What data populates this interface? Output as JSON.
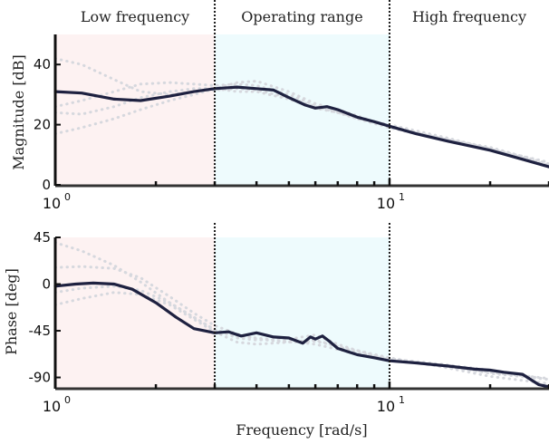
{
  "chart_data": [
    {
      "type": "line",
      "x_scale": "log",
      "xlim": [
        1,
        30
      ],
      "ylim": [
        0,
        50
      ],
      "ylabel": "Magnitude [dB]",
      "yticks": [
        0,
        20,
        40
      ],
      "xticks": [
        1,
        10
      ],
      "xtick_labels": [
        {
          "base": "10",
          "exp": "0"
        },
        {
          "base": "10",
          "exp": "1"
        }
      ],
      "regions": [
        {
          "label": "Low frequency",
          "from": 1,
          "to": 3,
          "color": "#fdf2f2"
        },
        {
          "label": "Operating range",
          "from": 3,
          "to": 10,
          "color": "#eefbfd"
        },
        {
          "label": "High frequency",
          "from": 10,
          "to": 30,
          "color": "#ffffff"
        }
      ],
      "boundaries": [
        3,
        10
      ],
      "series": [
        {
          "role": "nominal",
          "color": "#1e2140",
          "x": [
            1,
            1.2,
            1.5,
            1.8,
            2.2,
            2.6,
            3.0,
            3.5,
            4.0,
            4.5,
            5.0,
            5.6,
            6.0,
            6.5,
            7.0,
            8.0,
            9.0,
            10,
            12,
            15,
            20,
            25,
            30
          ],
          "y": [
            31,
            30.5,
            28.5,
            28,
            29.5,
            31,
            32,
            32.5,
            32,
            31.5,
            29,
            26.5,
            25.5,
            26,
            25,
            22.5,
            21,
            19.5,
            17,
            14.5,
            11.5,
            8.5,
            6
          ]
        },
        {
          "role": "perturbed",
          "color": "#d6d8de",
          "x": [
            1,
            1.2,
            1.5,
            1.8,
            2.2,
            2.6,
            3.0,
            3.5,
            4.0,
            5.0,
            6.0,
            7.0,
            8.0,
            10,
            15,
            20,
            30
          ],
          "y": [
            42,
            40,
            35,
            31,
            30,
            31,
            31.5,
            32,
            31.5,
            29,
            26,
            24,
            22.5,
            19.5,
            15,
            12,
            6.5
          ]
        },
        {
          "role": "perturbed",
          "color": "#d6d8de",
          "x": [
            1,
            1.2,
            1.5,
            1.8,
            2.2,
            2.6,
            3.0,
            3.5,
            4.0,
            5.0,
            6.0,
            7.0,
            8.0,
            10,
            15,
            20,
            30
          ],
          "y": [
            17,
            19,
            22,
            25,
            28,
            30,
            32,
            34,
            34.5,
            31,
            27,
            25,
            23,
            19,
            14.5,
            11.5,
            6
          ]
        },
        {
          "role": "perturbed",
          "color": "#d6d8de",
          "x": [
            1,
            1.2,
            1.5,
            1.8,
            2.2,
            2.6,
            3.0,
            3.5,
            4.0,
            5.0,
            6.0,
            7.0,
            8.0,
            10,
            15,
            20,
            30
          ],
          "y": [
            26,
            28,
            31,
            33.5,
            34,
            33.5,
            33,
            33.5,
            33,
            30,
            26.5,
            24.5,
            22,
            19,
            15,
            12.5,
            7
          ]
        },
        {
          "role": "perturbed",
          "color": "#d6d8de",
          "x": [
            1,
            1.2,
            1.5,
            1.8,
            2.2,
            2.6,
            3.0,
            3.5,
            4.0,
            5.0,
            6.0,
            7.0,
            8.0,
            10,
            15,
            20,
            30
          ],
          "y": [
            24,
            23.5,
            26,
            29,
            31,
            32,
            32,
            31,
            31,
            28.5,
            25.5,
            24,
            22,
            20,
            15.5,
            12,
            7.5
          ]
        }
      ]
    },
    {
      "type": "line",
      "x_scale": "log",
      "xlim": [
        1,
        30
      ],
      "ylim": [
        -100,
        45
      ],
      "ylabel": "Phase [deg]",
      "xlabel": "Frequency [rad/s]",
      "yticks": [
        45,
        0,
        -45,
        -90
      ],
      "ytick_labels": [
        "45",
        "0",
        "-45",
        "-90"
      ],
      "xticks": [
        1,
        10
      ],
      "xtick_labels": [
        {
          "base": "10",
          "exp": "0"
        },
        {
          "base": "10",
          "exp": "1"
        }
      ],
      "regions": [
        {
          "from": 1,
          "to": 3,
          "color": "#fdf2f2"
        },
        {
          "from": 3,
          "to": 10,
          "color": "#eefbfd"
        },
        {
          "from": 10,
          "to": 30,
          "color": "#ffffff"
        }
      ],
      "boundaries": [
        3,
        10
      ],
      "series": [
        {
          "role": "nominal",
          "color": "#1e2140",
          "x": [
            1,
            1.15,
            1.3,
            1.5,
            1.7,
            2.0,
            2.3,
            2.6,
            3.0,
            3.3,
            3.6,
            4.0,
            4.5,
            5.0,
            5.5,
            5.8,
            6.0,
            6.3,
            6.6,
            7.0,
            8.0,
            9.0,
            10,
            12,
            15,
            18,
            20,
            22,
            25,
            28,
            30
          ],
          "y": [
            -2,
            0,
            1,
            0,
            -5,
            -18,
            -32,
            -43,
            -47,
            -46,
            -50,
            -47,
            -51,
            -52,
            -57,
            -51,
            -53,
            -50,
            -55,
            -62,
            -68,
            -71,
            -74,
            -76,
            -79,
            -82,
            -83,
            -85,
            -87,
            -97,
            -99
          ]
        },
        {
          "role": "perturbed",
          "color": "#d6d8de",
          "x": [
            1,
            1.2,
            1.5,
            1.8,
            2.2,
            2.6,
            3.0,
            3.5,
            4.0,
            5.0,
            6.0,
            7.0,
            8.0,
            10,
            15,
            20,
            30
          ],
          "y": [
            40,
            32,
            18,
            2,
            -18,
            -32,
            -44,
            -50,
            -52,
            -55,
            -58,
            -63,
            -67,
            -72,
            -78,
            -83,
            -92
          ]
        },
        {
          "role": "perturbed",
          "color": "#d6d8de",
          "x": [
            1,
            1.2,
            1.5,
            1.8,
            2.2,
            2.6,
            3.0,
            3.5,
            4.0,
            5.0,
            6.0,
            7.0,
            8.0,
            10,
            15,
            20,
            30
          ],
          "y": [
            16,
            17,
            15,
            6,
            -12,
            -28,
            -40,
            -48,
            -53,
            -56,
            -55,
            -60,
            -66,
            -72,
            -79,
            -86,
            -92
          ]
        },
        {
          "role": "perturbed",
          "color": "#d6d8de",
          "x": [
            1,
            1.2,
            1.5,
            1.8,
            2.2,
            2.6,
            3.0,
            3.5,
            4.0,
            5.0,
            6.0,
            7.0,
            8.0,
            10,
            15,
            20,
            30
          ],
          "y": [
            -20,
            -14,
            -8,
            -10,
            -20,
            -34,
            -46,
            -56,
            -58,
            -56,
            -54,
            -60,
            -64,
            -71,
            -81,
            -89,
            -96
          ]
        },
        {
          "role": "perturbed",
          "color": "#d6d8de",
          "x": [
            1,
            1.2,
            1.5,
            1.8,
            2.2,
            2.6,
            3.0,
            3.5,
            4.0,
            5.0,
            6.0,
            7.0,
            8.0,
            10,
            15,
            20,
            30
          ],
          "y": [
            -8,
            -4,
            -2,
            -6,
            -18,
            -32,
            -44,
            -52,
            -54,
            -53,
            -49,
            -58,
            -64,
            -73,
            -80,
            -85,
            -91
          ]
        }
      ]
    }
  ]
}
